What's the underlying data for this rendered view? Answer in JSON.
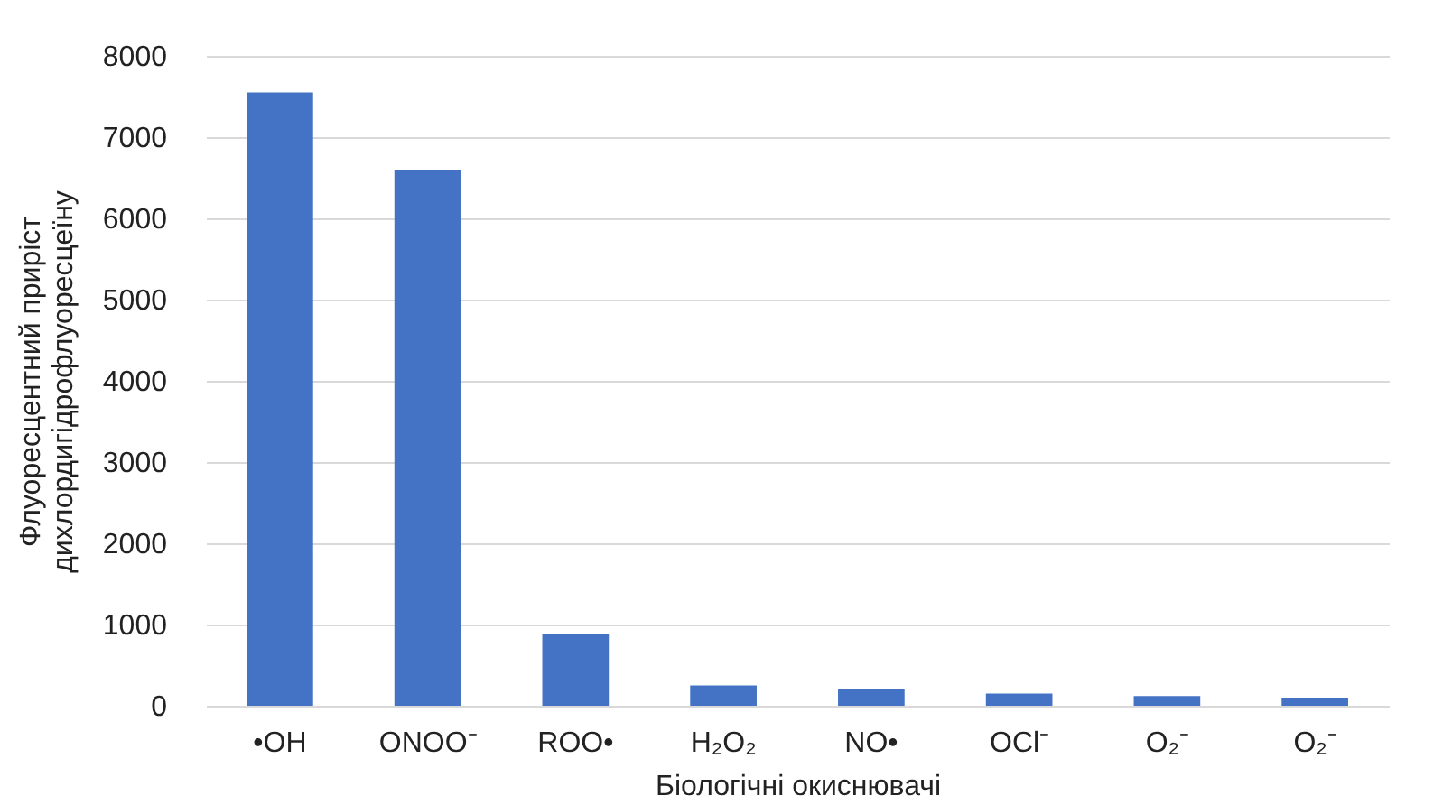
{
  "chart_data": {
    "type": "bar",
    "xlabel": "Біологічні окиснювачі",
    "ylabel": "Флуоресцентний приріст\nдихлордигідрофлуоресцеїну",
    "categories": [
      "•OH",
      "ONOO⁻",
      "ROO•",
      "H₂O₂",
      "NO•",
      "OCl⁻",
      "O₂⁻",
      "O₂⁻"
    ],
    "values": [
      7550,
      6600,
      890,
      250,
      210,
      150,
      120,
      100
    ],
    "color": "#4472c4",
    "ylim": [
      0,
      8000
    ],
    "yticks": [
      0,
      1000,
      2000,
      3000,
      4000,
      5000,
      6000,
      7000,
      8000
    ],
    "grid": "y"
  }
}
